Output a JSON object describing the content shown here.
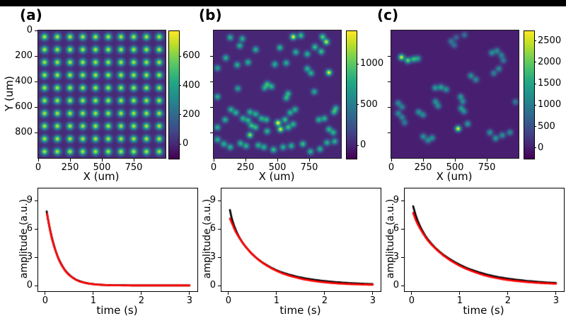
{
  "figure": {
    "background": "#ffffff",
    "top_bar_color": "#000000"
  },
  "colors": {
    "data_line": "#000000",
    "fit_line": "#ff0000",
    "viridis_stops": [
      "#440154",
      "#482475",
      "#414487",
      "#355f8d",
      "#2a788e",
      "#21918c",
      "#22a884",
      "#44bf70",
      "#7ad151",
      "#bddf26",
      "#fde725"
    ]
  },
  "chart_data": [
    {
      "id": "heatmap-a",
      "type": "heatmap",
      "title": "(a)",
      "xlabel": "X (um)",
      "ylabel": "Y (um)",
      "xlim": [
        0,
        1000
      ],
      "ylim": [
        0,
        1000
      ],
      "xticks": [
        0,
        250,
        500,
        750
      ],
      "yticks": [
        0,
        200,
        400,
        600,
        800
      ],
      "ytick_labels_visible": true,
      "colorbar": {
        "ticks": [
          0,
          200,
          400,
          600
        ],
        "vmin": -100,
        "vmax": 770
      },
      "spot_sigma": 18,
      "spot_grid": {
        "start": 50,
        "step": 100,
        "count": 10,
        "amplitude": 700
      },
      "spots": []
    },
    {
      "id": "heatmap-b",
      "type": "heatmap",
      "title": "(b)",
      "xlabel": "X (um)",
      "ylabel": "",
      "xlim": [
        0,
        1000
      ],
      "ylim": [
        0,
        1000
      ],
      "xticks": [
        0,
        250,
        500,
        750
      ],
      "yticks": [
        200,
        400,
        600,
        800
      ],
      "ytick_labels_visible": false,
      "colorbar": {
        "ticks": [
          0,
          500,
          1000
        ],
        "vmin": -165,
        "vmax": 1400
      },
      "spot_sigma": 16,
      "spots": [
        [
          130,
          55,
          850
        ],
        [
          225,
          65,
          850
        ],
        [
          205,
          120,
          850
        ],
        [
          625,
          50,
          1400
        ],
        [
          685,
          40,
          950
        ],
        [
          855,
          50,
          1050
        ],
        [
          885,
          90,
          1300
        ],
        [
          795,
          130,
          950
        ],
        [
          845,
          165,
          950
        ],
        [
          330,
          150,
          850
        ],
        [
          520,
          135,
          900
        ],
        [
          645,
          170,
          850
        ],
        [
          735,
          185,
          850
        ],
        [
          95,
          215,
          850
        ],
        [
          185,
          270,
          850
        ],
        [
          270,
          250,
          850
        ],
        [
          480,
          265,
          850
        ],
        [
          570,
          255,
          850
        ],
        [
          735,
          300,
          850
        ],
        [
          765,
          335,
          850
        ],
        [
          905,
          330,
          1400
        ],
        [
          30,
          295,
          750
        ],
        [
          30,
          520,
          850
        ],
        [
          190,
          455,
          750
        ],
        [
          420,
          420,
          850
        ],
        [
          455,
          440,
          850
        ],
        [
          400,
          450,
          800
        ],
        [
          585,
          495,
          850
        ],
        [
          570,
          530,
          850
        ],
        [
          790,
          480,
          800
        ],
        [
          135,
          620,
          850
        ],
        [
          175,
          645,
          850
        ],
        [
          285,
          640,
          850
        ],
        [
          330,
          655,
          850
        ],
        [
          230,
          690,
          850
        ],
        [
          270,
          705,
          850
        ],
        [
          375,
          690,
          850
        ],
        [
          415,
          700,
          850
        ],
        [
          295,
          745,
          900
        ],
        [
          330,
          760,
          850
        ],
        [
          505,
          725,
          1450
        ],
        [
          560,
          700,
          950
        ],
        [
          600,
          645,
          850
        ],
        [
          640,
          620,
          850
        ],
        [
          90,
          700,
          850
        ],
        [
          30,
          760,
          850
        ],
        [
          285,
          820,
          1200
        ],
        [
          420,
          790,
          900
        ],
        [
          525,
          775,
          1350
        ],
        [
          585,
          760,
          950
        ],
        [
          625,
          735,
          850
        ],
        [
          825,
          700,
          850
        ],
        [
          870,
          690,
          850
        ],
        [
          945,
          640,
          850
        ],
        [
          960,
          610,
          800
        ],
        [
          905,
          775,
          850
        ],
        [
          940,
          800,
          850
        ],
        [
          30,
          855,
          850
        ],
        [
          80,
          890,
          850
        ],
        [
          130,
          915,
          850
        ],
        [
          210,
          885,
          850
        ],
        [
          255,
          905,
          850
        ],
        [
          350,
          900,
          850
        ],
        [
          395,
          915,
          850
        ],
        [
          470,
          935,
          950
        ],
        [
          545,
          915,
          850
        ],
        [
          610,
          905,
          850
        ],
        [
          700,
          890,
          950
        ],
        [
          760,
          950,
          850
        ],
        [
          835,
          930,
          850
        ],
        [
          890,
          880,
          850
        ],
        [
          950,
          870,
          850
        ]
      ]
    },
    {
      "id": "heatmap-c",
      "type": "heatmap",
      "title": "(c)",
      "xlabel": "X (um)",
      "ylabel": "",
      "xlim": [
        0,
        1000
      ],
      "ylim": [
        0,
        1000
      ],
      "xticks": [
        0,
        250,
        500,
        750
      ],
      "yticks": [
        200,
        400,
        600,
        800
      ],
      "ytick_labels_visible": false,
      "colorbar": {
        "ticks": [
          0,
          500,
          1000,
          1500,
          2000,
          2500
        ],
        "vmin": -250,
        "vmax": 2725
      },
      "spot_sigma": 16,
      "spots": [
        [
          470,
          85,
          950
        ],
        [
          495,
          115,
          850
        ],
        [
          510,
          55,
          750
        ],
        [
          575,
          35,
          900
        ],
        [
          80,
          210,
          2600
        ],
        [
          130,
          235,
          2100
        ],
        [
          175,
          225,
          1700
        ],
        [
          210,
          220,
          1400
        ],
        [
          790,
          175,
          1300
        ],
        [
          830,
          160,
          1200
        ],
        [
          865,
          195,
          1100
        ],
        [
          880,
          235,
          1000
        ],
        [
          845,
          300,
          1200
        ],
        [
          805,
          335,
          1100
        ],
        [
          625,
          355,
          1300
        ],
        [
          665,
          385,
          1200
        ],
        [
          345,
          450,
          1400
        ],
        [
          390,
          445,
          1500
        ],
        [
          432,
          462,
          1300
        ],
        [
          545,
          520,
          1400
        ],
        [
          562,
          558,
          1200
        ],
        [
          55,
          570,
          1200
        ],
        [
          85,
          600,
          1100
        ],
        [
          348,
          558,
          1300
        ],
        [
          368,
          592,
          1200
        ],
        [
          215,
          640,
          1300
        ],
        [
          250,
          662,
          1200
        ],
        [
          548,
          610,
          1300
        ],
        [
          572,
          635,
          1200
        ],
        [
          55,
          650,
          1200
        ],
        [
          85,
          682,
          1100
        ],
        [
          105,
          722,
          1000
        ],
        [
          525,
          770,
          2700
        ],
        [
          600,
          732,
          1400
        ],
        [
          252,
          832,
          1300
        ],
        [
          288,
          862,
          1200
        ],
        [
          322,
          842,
          1300
        ],
        [
          775,
          800,
          1300
        ],
        [
          820,
          845,
          1400
        ],
        [
          872,
          822,
          1300
        ],
        [
          932,
          800,
          1200
        ],
        [
          975,
          560,
          1000
        ]
      ]
    },
    {
      "id": "decay-a",
      "type": "line",
      "xlabel": "time (s)",
      "ylabel": "amplitude (a.u.)",
      "xlim": [
        -0.146,
        3.163
      ],
      "ylim": [
        -0.6,
        10.28
      ],
      "xticks": [
        0,
        1,
        2,
        3
      ],
      "yticks": [
        0,
        3,
        6,
        9
      ],
      "series": [
        {
          "name": "data",
          "color": "#000000",
          "points": [
            [
              0.03,
              7.85
            ],
            [
              0.06,
              6.95
            ],
            [
              0.1,
              5.95
            ],
            [
              0.15,
              4.85
            ],
            [
              0.2,
              3.95
            ],
            [
              0.25,
              3.2
            ],
            [
              0.3,
              2.6
            ],
            [
              0.4,
              1.72
            ],
            [
              0.5,
              1.14
            ],
            [
              0.6,
              0.75
            ],
            [
              0.7,
              0.5
            ],
            [
              0.85,
              0.27
            ],
            [
              1.0,
              0.15
            ],
            [
              1.2,
              0.07
            ],
            [
              1.5,
              0.03
            ],
            [
              2.0,
              0.012
            ],
            [
              2.5,
              0.006
            ],
            [
              3.0,
              0.004
            ]
          ]
        },
        {
          "name": "fit",
          "color": "#ff0000",
          "points": [
            [
              0.04,
              7.6
            ],
            [
              0.08,
              6.4
            ],
            [
              0.13,
              5.15
            ],
            [
              0.2,
              3.9
            ],
            [
              0.3,
              2.55
            ],
            [
              0.4,
              1.68
            ],
            [
              0.5,
              1.1
            ],
            [
              0.65,
              0.58
            ],
            [
              0.8,
              0.31
            ],
            [
              1.0,
              0.14
            ],
            [
              1.25,
              0.05
            ],
            [
              1.5,
              0.02
            ],
            [
              2.0,
              0.008
            ],
            [
              2.5,
              0.005
            ],
            [
              3.0,
              0.004
            ]
          ]
        }
      ]
    },
    {
      "id": "decay-b",
      "type": "line",
      "xlabel": "time (s)",
      "ylabel": "amplitude (a.u.)",
      "xlim": [
        -0.146,
        3.163
      ],
      "ylim": [
        -0.6,
        10.28
      ],
      "xticks": [
        0,
        1,
        2,
        3
      ],
      "yticks": [
        0,
        3,
        6,
        9
      ],
      "series": [
        {
          "name": "data",
          "color": "#000000",
          "points": [
            [
              0.03,
              8.0
            ],
            [
              0.07,
              7.1
            ],
            [
              0.12,
              6.3
            ],
            [
              0.2,
              5.35
            ],
            [
              0.3,
              4.5
            ],
            [
              0.4,
              3.85
            ],
            [
              0.5,
              3.3
            ],
            [
              0.65,
              2.65
            ],
            [
              0.8,
              2.15
            ],
            [
              1.0,
              1.62
            ],
            [
              1.2,
              1.25
            ],
            [
              1.5,
              0.85
            ],
            [
              1.8,
              0.6
            ],
            [
              2.1,
              0.42
            ],
            [
              2.4,
              0.3
            ],
            [
              2.7,
              0.21
            ],
            [
              3.0,
              0.15
            ]
          ]
        },
        {
          "name": "fit",
          "color": "#ff0000",
          "points": [
            [
              0.03,
              7.1
            ],
            [
              0.08,
              6.5
            ],
            [
              0.15,
              5.7
            ],
            [
              0.25,
              4.85
            ],
            [
              0.35,
              4.15
            ],
            [
              0.5,
              3.3
            ],
            [
              0.65,
              2.62
            ],
            [
              0.8,
              2.1
            ],
            [
              1.0,
              1.55
            ],
            [
              1.2,
              1.15
            ],
            [
              1.5,
              0.73
            ],
            [
              1.8,
              0.46
            ],
            [
              2.1,
              0.29
            ],
            [
              2.4,
              0.18
            ],
            [
              2.7,
              0.12
            ],
            [
              3.0,
              0.08
            ]
          ]
        }
      ]
    },
    {
      "id": "decay-c",
      "type": "line",
      "xlabel": "time (s)",
      "ylabel": "amplitude (a.u.)",
      "xlim": [
        -0.146,
        3.163
      ],
      "ylim": [
        -0.6,
        10.28
      ],
      "xticks": [
        0,
        1,
        2,
        3
      ],
      "yticks": [
        0,
        3,
        6,
        9
      ],
      "series": [
        {
          "name": "data",
          "color": "#000000",
          "points": [
            [
              0.03,
              8.4
            ],
            [
              0.08,
              7.5
            ],
            [
              0.15,
              6.55
            ],
            [
              0.25,
              5.55
            ],
            [
              0.35,
              4.8
            ],
            [
              0.5,
              3.95
            ],
            [
              0.65,
              3.3
            ],
            [
              0.8,
              2.78
            ],
            [
              1.0,
              2.2
            ],
            [
              1.2,
              1.75
            ],
            [
              1.5,
              1.25
            ],
            [
              1.8,
              0.9
            ],
            [
              2.1,
              0.66
            ],
            [
              2.4,
              0.49
            ],
            [
              2.7,
              0.36
            ],
            [
              3.0,
              0.27
            ]
          ]
        },
        {
          "name": "fit",
          "color": "#ff0000",
          "points": [
            [
              0.03,
              7.7
            ],
            [
              0.08,
              7.0
            ],
            [
              0.15,
              6.25
            ],
            [
              0.25,
              5.4
            ],
            [
              0.35,
              4.68
            ],
            [
              0.5,
              3.88
            ],
            [
              0.65,
              3.22
            ],
            [
              0.8,
              2.68
            ],
            [
              1.0,
              2.08
            ],
            [
              1.2,
              1.63
            ],
            [
              1.5,
              1.1
            ],
            [
              1.8,
              0.75
            ],
            [
              2.1,
              0.52
            ],
            [
              2.4,
              0.37
            ],
            [
              2.7,
              0.26
            ],
            [
              3.0,
              0.19
            ]
          ]
        }
      ]
    }
  ]
}
